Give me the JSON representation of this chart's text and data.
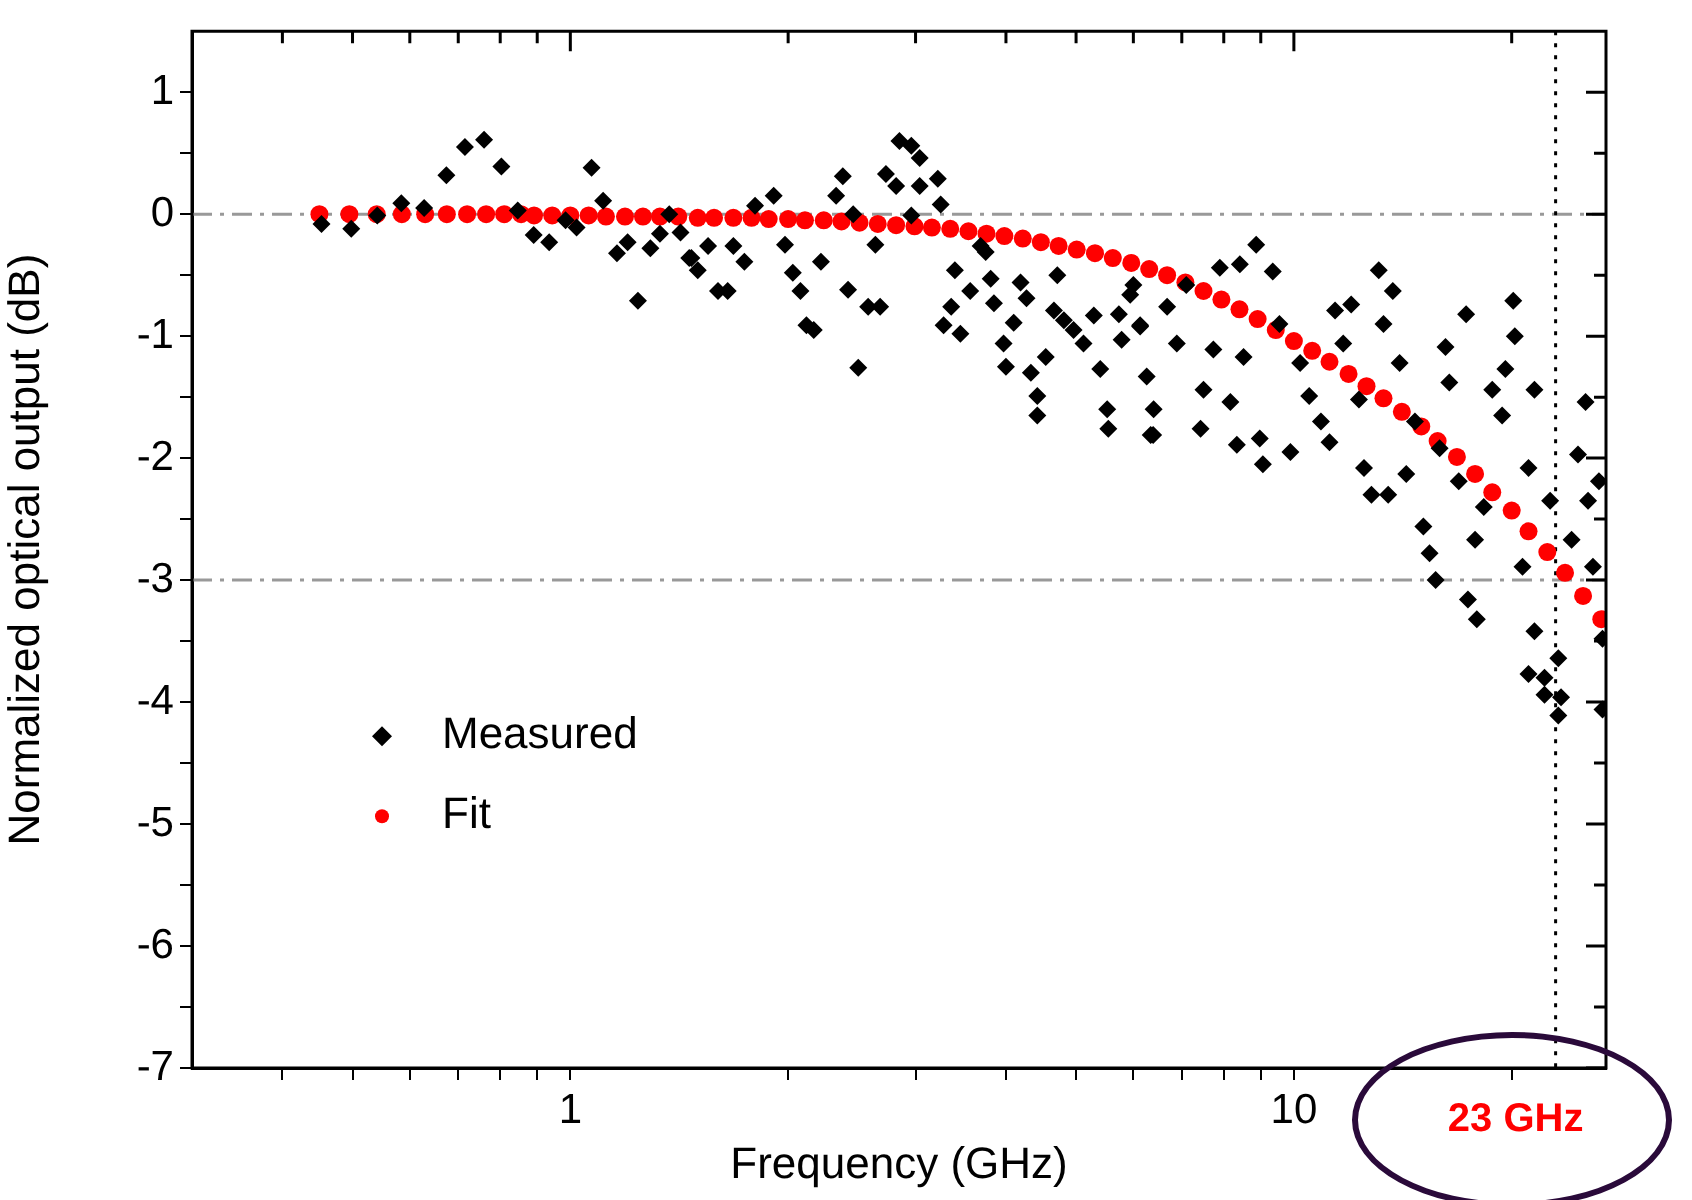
{
  "chart_data": {
    "type": "scatter",
    "xlabel": "Frequency (GHz)",
    "ylabel": "Normalized optical output (dB)",
    "log": "x",
    "grid": false,
    "legend": "left",
    "xlim": [
      0.3,
      27
    ],
    "ylim": [
      -7,
      1.5
    ],
    "xticks": [
      {
        "value": 0.4,
        "label": null
      },
      {
        "value": 0.5,
        "label": null
      },
      {
        "value": 0.6,
        "label": null
      },
      {
        "value": 0.7,
        "label": null
      },
      {
        "value": 0.8,
        "label": null
      },
      {
        "value": 0.9,
        "label": null
      },
      1,
      {
        "value": 2,
        "label": null
      },
      {
        "value": 3,
        "label": null
      },
      {
        "value": 4,
        "label": null
      },
      {
        "value": 5,
        "label": null
      },
      {
        "value": 6,
        "label": null
      },
      {
        "value": 7,
        "label": null
      },
      {
        "value": 8,
        "label": null
      },
      {
        "value": 9,
        "label": null
      },
      10,
      {
        "value": 20,
        "label": null
      }
    ],
    "yticks": [
      -7,
      {
        "value": -6.5,
        "label": null
      },
      -6,
      {
        "value": -5.5,
        "label": null
      },
      -5,
      {
        "value": -4.5,
        "label": null
      },
      -4,
      {
        "value": -3.5,
        "label": null
      },
      -3,
      {
        "value": -2.5,
        "label": null
      },
      -2,
      {
        "value": -1.5,
        "label": null
      },
      -1,
      {
        "value": -0.5,
        "label": null
      },
      0,
      {
        "value": 0.5,
        "label": null
      },
      1
    ],
    "ref_lines": [
      {
        "axis": "y",
        "value": 0,
        "color": "#999999",
        "line_style": "dashdot"
      },
      {
        "axis": "y",
        "value": -3,
        "color": "#999999",
        "line_style": "dashdot"
      },
      {
        "axis": "x",
        "value": 23,
        "color": "#000000",
        "line_style": "dotted",
        "label": "23 GHz"
      }
    ],
    "series": [
      {
        "name": "Measured",
        "color": "#000000",
        "marker": "diamond",
        "x": [
          0.453,
          0.498,
          0.541,
          0.584,
          0.628,
          0.674,
          0.715,
          0.76,
          0.803,
          0.846,
          0.89,
          0.935,
          0.985,
          1.02,
          1.07,
          1.11,
          1.16,
          1.2,
          1.24,
          1.29,
          1.33,
          1.37,
          1.42,
          1.46,
          1.5,
          1.47,
          1.55,
          1.6,
          1.65,
          1.68,
          1.74,
          1.8,
          1.91,
          1.98,
          2.03,
          2.08,
          2.12,
          2.17,
          2.22,
          2.33,
          2.38,
          2.42,
          2.5,
          2.46,
          2.58,
          2.64,
          2.68,
          2.73,
          2.82,
          2.85,
          2.96,
          3.04,
          3.04,
          3.22,
          3.25,
          2.96,
          3.28,
          3.36,
          3.4,
          3.46,
          3.57,
          3.69,
          3.75,
          3.81,
          3.85,
          3.97,
          4.0,
          4.1,
          4.19,
          4.27,
          4.33,
          4.42,
          4.42,
          4.54,
          4.66,
          4.71,
          4.81,
          4.96,
          5.12,
          5.29,
          5.4,
          5.52,
          5.54,
          5.73,
          5.78,
          6.0,
          6.13,
          6.26,
          6.39,
          5.94,
          6.13,
          6.34,
          6.4,
          6.68,
          6.89,
          7.1,
          7.43,
          7.5,
          7.74,
          7.9,
          8.17,
          8.34,
          8.42,
          8.52,
          8.87,
          8.97,
          9.06,
          9.35,
          9.55,
          9.89,
          10.2,
          10.5,
          10.9,
          11.2,
          11.4,
          11.7,
          12.0,
          12.3,
          12.5,
          12.8,
          13.1,
          13.3,
          13.5,
          13.7,
          14.0,
          14.3,
          14.7,
          15.1,
          15.4,
          15.7,
          15.9,
          16.2,
          16.4,
          16.9,
          17.3,
          17.4,
          17.8,
          17.9,
          18.3,
          18.8,
          19.4,
          19.6,
          20.1,
          20.2,
          20.7,
          21.1,
          21.5,
          21.5,
          22.2,
          22.6,
          23.2,
          23.4,
          24.2,
          24.7,
          25.3,
          25.5,
          25.9,
          26.4,
          26.7,
          23.2,
          21.1,
          22.2,
          26.7
        ],
        "values": [
          -0.08,
          -0.12,
          -0.01,
          0.09,
          0.05,
          0.32,
          0.55,
          0.61,
          0.39,
          0.03,
          -0.17,
          -0.23,
          -0.05,
          -0.11,
          0.38,
          0.11,
          -0.32,
          -0.23,
          -0.71,
          -0.28,
          -0.16,
          0.0,
          -0.15,
          -0.36,
          -0.46,
          -0.36,
          -0.26,
          -0.63,
          -0.63,
          -0.26,
          -0.39,
          0.07,
          0.15,
          -0.25,
          -0.48,
          -0.63,
          -0.91,
          -0.95,
          -0.39,
          0.15,
          0.31,
          -0.62,
          -1.26,
          0.0,
          -0.76,
          -0.25,
          -0.76,
          0.33,
          0.23,
          0.6,
          0.56,
          0.46,
          0.23,
          0.29,
          0.08,
          -0.01,
          -0.91,
          -0.76,
          -0.46,
          -0.98,
          -0.63,
          -0.26,
          -0.31,
          -0.53,
          -0.73,
          -1.06,
          -1.25,
          -0.89,
          -0.56,
          -0.69,
          -1.3,
          -1.49,
          -1.65,
          -1.17,
          -0.79,
          -0.5,
          -0.87,
          -0.95,
          -1.06,
          -0.83,
          -1.27,
          -1.6,
          -1.76,
          -0.82,
          -1.03,
          -0.58,
          -0.91,
          -1.33,
          -1.81,
          -0.66,
          -0.92,
          -1.81,
          -1.6,
          -0.76,
          -1.06,
          -0.58,
          -1.76,
          -1.44,
          -1.11,
          -0.44,
          -1.54,
          -1.89,
          -0.41,
          -1.17,
          -0.25,
          -1.84,
          -2.05,
          -0.47,
          -0.9,
          -1.95,
          -1.22,
          -1.49,
          -1.7,
          -1.87,
          -0.79,
          -1.06,
          -0.74,
          -1.52,
          -2.08,
          -2.3,
          -0.46,
          -0.9,
          -2.3,
          -0.63,
          -1.22,
          -2.13,
          -1.7,
          -2.56,
          -2.78,
          -3.0,
          -1.92,
          -1.09,
          -1.38,
          -2.19,
          -0.82,
          -3.16,
          -2.67,
          -3.32,
          -2.4,
          -1.44,
          -1.65,
          -1.27,
          -0.71,
          -1.0,
          -2.89,
          -2.08,
          -1.44,
          -3.42,
          -3.8,
          -2.35,
          -3.64,
          -3.96,
          -2.67,
          -1.97,
          -1.54,
          -2.35,
          -2.89,
          -2.19,
          -3.48,
          -4.11,
          -3.77,
          -3.94,
          -4.06
        ]
      },
      {
        "name": "Fit",
        "color": "#ff0000",
        "marker": "circle",
        "x": [
          0.45,
          0.495,
          0.54,
          0.585,
          0.63,
          0.675,
          0.72,
          0.765,
          0.81,
          0.855,
          0.891,
          0.944,
          1.0,
          1.06,
          1.12,
          1.19,
          1.26,
          1.33,
          1.41,
          1.5,
          1.58,
          1.68,
          1.78,
          1.88,
          2.0,
          2.11,
          2.24,
          2.37,
          2.51,
          2.66,
          2.82,
          2.99,
          3.16,
          3.35,
          3.55,
          3.76,
          3.98,
          4.22,
          4.47,
          4.73,
          5.01,
          5.31,
          5.62,
          5.96,
          6.31,
          6.68,
          7.08,
          7.5,
          7.94,
          8.41,
          8.91,
          9.44,
          10.0,
          10.6,
          11.2,
          11.9,
          12.6,
          13.3,
          14.1,
          15.0,
          15.8,
          16.8,
          17.8,
          18.8,
          20.0,
          21.1,
          22.4,
          23.7,
          25.1,
          26.6
        ],
        "values": [
          0,
          0,
          0,
          0,
          0,
          0,
          0,
          0,
          0,
          0,
          -0.01,
          -0.01,
          -0.01,
          -0.01,
          -0.02,
          -0.02,
          -0.02,
          -0.02,
          -0.02,
          -0.03,
          -0.03,
          -0.03,
          -0.03,
          -0.04,
          -0.04,
          -0.05,
          -0.05,
          -0.06,
          -0.07,
          -0.08,
          -0.09,
          -0.1,
          -0.11,
          -0.12,
          -0.14,
          -0.16,
          -0.18,
          -0.2,
          -0.23,
          -0.26,
          -0.29,
          -0.32,
          -0.36,
          -0.4,
          -0.45,
          -0.5,
          -0.56,
          -0.63,
          -0.7,
          -0.78,
          -0.86,
          -0.95,
          -1.04,
          -1.12,
          -1.21,
          -1.31,
          -1.41,
          -1.51,
          -1.62,
          -1.74,
          -1.86,
          -1.99,
          -2.13,
          -2.28,
          -2.43,
          -2.6,
          -2.77,
          -2.94,
          -3.13,
          -3.32
        ]
      }
    ]
  }
}
